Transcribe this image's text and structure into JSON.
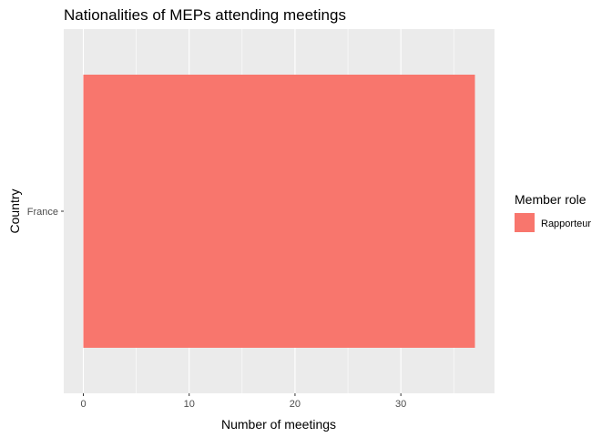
{
  "chart_data": {
    "type": "bar",
    "orientation": "horizontal",
    "title": "Nationalities of MEPs attending meetings",
    "xlabel": "Number of meetings",
    "ylabel": "Country",
    "categories": [
      "France"
    ],
    "series": [
      {
        "name": "Rapporteur",
        "values": [
          37
        ],
        "color": "#F8766D"
      }
    ],
    "xlim": [
      -1.85,
      38.85
    ],
    "xticks": [
      0,
      10,
      20,
      30
    ],
    "xtick_labels": [
      "0",
      "10",
      "20",
      "30"
    ],
    "grid": true,
    "panel_background": "#EBEBEB",
    "grid_color": "#FFFFFF",
    "legend": {
      "title": "Member role",
      "position": "right",
      "entries": [
        {
          "label": "Rapporteur",
          "color": "#F8766D"
        }
      ]
    }
  }
}
